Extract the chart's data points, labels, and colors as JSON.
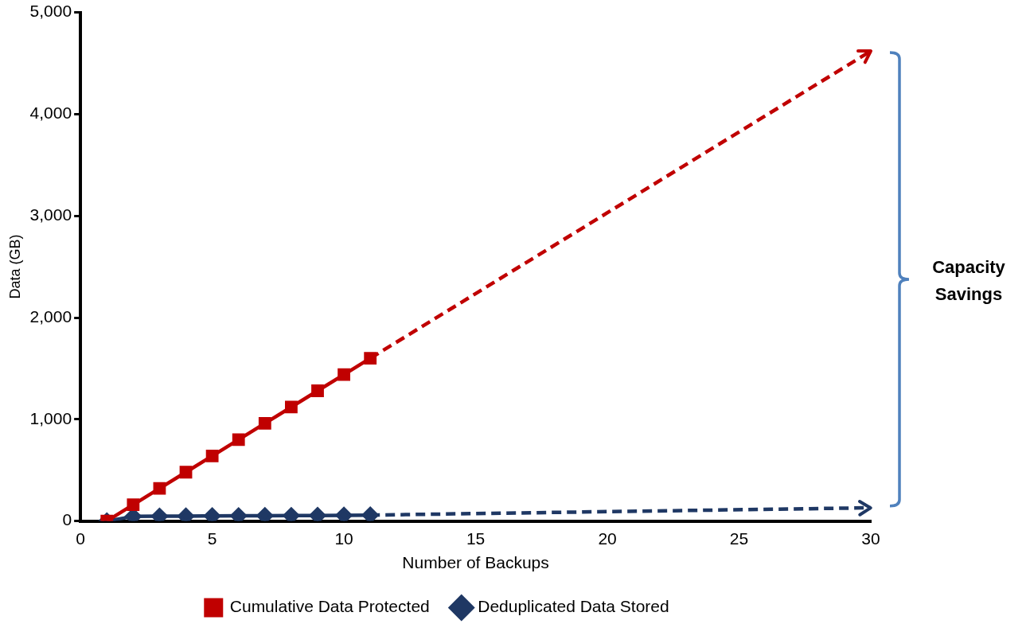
{
  "chart_data": {
    "type": "line",
    "xlabel": "Number of Backups",
    "ylabel": "Data (GB)",
    "xlim": [
      0,
      30
    ],
    "xticks": [
      0,
      5,
      10,
      15,
      20,
      25,
      30
    ],
    "ylim": [
      0,
      5000
    ],
    "yticks": [
      0,
      {
        "value": 1000,
        "label": "1,000"
      },
      {
        "value": 2000,
        "label": "2,000"
      },
      {
        "value": 3000,
        "label": "3,000"
      },
      {
        "value": 4000,
        "label": "4,000"
      },
      {
        "value": 5000,
        "label": "5,000"
      }
    ],
    "grid": false,
    "legend": "bottom",
    "series": [
      {
        "name": "Cumulative Data Protected",
        "color": "#c00000",
        "marker": "square",
        "x": [
          1,
          2,
          3,
          4,
          5,
          6,
          7,
          8,
          9,
          10,
          11
        ],
        "values": [
          0,
          160,
          320,
          480,
          640,
          800,
          960,
          1120,
          1280,
          1440,
          1600
        ]
      },
      {
        "name": "Deduplicated Data Stored",
        "color": "#1f3864",
        "marker": "diamond",
        "x": [
          1,
          2,
          3,
          4,
          5,
          6,
          7,
          8,
          9,
          10,
          11
        ],
        "values": [
          0,
          45,
          47,
          48,
          50,
          51,
          52,
          53,
          54,
          56,
          58
        ]
      },
      {
        "color": "#c00000",
        "marker": "none",
        "line_style": "dashed",
        "x": [
          11,
          30
        ],
        "values": [
          1600,
          4620
        ]
      },
      {
        "color": "#1f3864",
        "marker": "none",
        "line_style": "dashed",
        "x": [
          11,
          30
        ],
        "values": [
          58,
          130
        ]
      }
    ],
    "annotations": [
      "Capacity Savings"
    ]
  }
}
